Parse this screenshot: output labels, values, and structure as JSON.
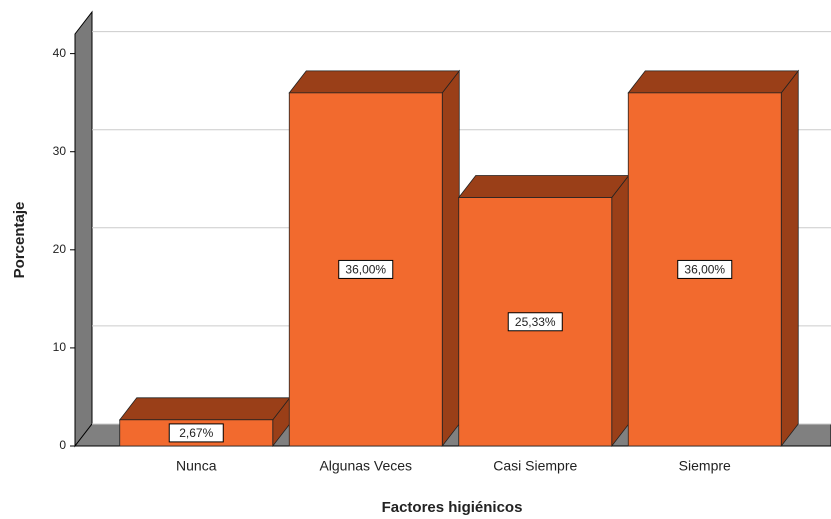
{
  "chart_data": {
    "type": "bar3d",
    "x_label": "Factores higiénicos",
    "y_label": "Porcentaje",
    "categories": [
      "Nunca",
      "Algunas Veces",
      "Casi Siempre",
      "Siempre"
    ],
    "values": [
      2.67,
      36.0,
      25.33,
      36.0
    ],
    "value_labels": [
      "2,67%",
      "36,00%",
      "25,33%",
      "36,00%"
    ],
    "color": "#f26a2e",
    "shade_color": "#9a3f18",
    "ylim": [
      0,
      42
    ],
    "yticks": [
      0,
      10,
      20,
      30,
      40
    ],
    "grid": true
  }
}
